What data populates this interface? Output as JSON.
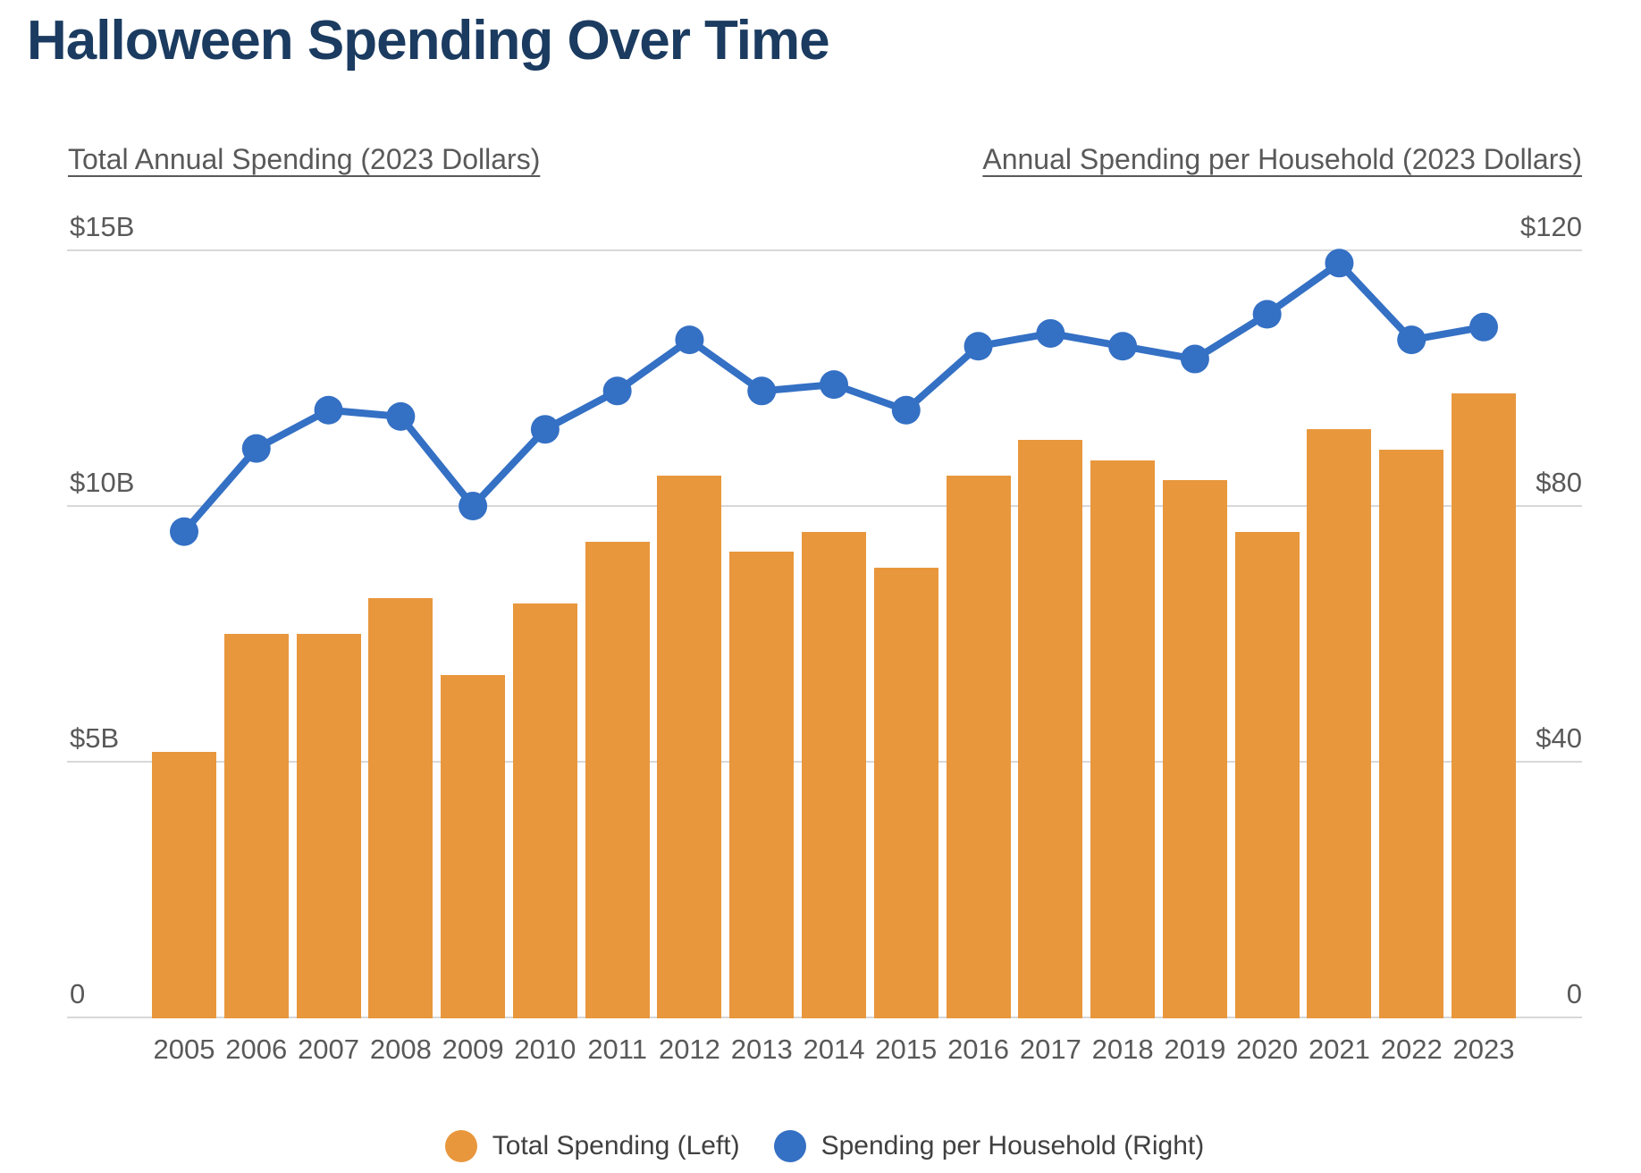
{
  "title": "Halloween Spending Over Time",
  "left_axis": {
    "header": "Total Annual Spending (2023 Dollars)",
    "ticks": [
      {
        "value": 15,
        "label": "$15B"
      },
      {
        "value": 10,
        "label": "$10B"
      },
      {
        "value": 5,
        "label": "$5B"
      },
      {
        "value": 0,
        "label": "0"
      }
    ]
  },
  "right_axis": {
    "header": "Annual Spending per Household (2023 Dollars)",
    "ticks": [
      {
        "value": 120,
        "label": "$120"
      },
      {
        "value": 80,
        "label": "$80"
      },
      {
        "value": 40,
        "label": "$40"
      },
      {
        "value": 0,
        "label": "0"
      }
    ]
  },
  "legend": [
    {
      "label": "Total Spending (Left)",
      "color": "#e8973d",
      "marker": "circle"
    },
    {
      "label": "Spending per Household (Right)",
      "color": "#3470c4",
      "marker": "circle"
    }
  ],
  "colors": {
    "bar": "#e8973d",
    "line": "#3470c4",
    "title": "#1b3b60",
    "axis_text": "#595959",
    "gridline": "#d8d8d8"
  },
  "chart_data": {
    "type": "combo",
    "categories": [
      2005,
      2006,
      2007,
      2008,
      2009,
      2010,
      2011,
      2012,
      2013,
      2014,
      2015,
      2016,
      2017,
      2018,
      2019,
      2020,
      2021,
      2022,
      2023
    ],
    "series": [
      {
        "name": "Total Spending (Left)",
        "type": "bar",
        "axis": "left",
        "unit": "billions of 2023 dollars",
        "values": [
          5.2,
          7.5,
          7.5,
          8.2,
          6.7,
          8.1,
          9.3,
          10.6,
          9.1,
          9.5,
          8.8,
          10.6,
          11.3,
          10.9,
          10.5,
          9.5,
          11.5,
          11.1,
          12.2
        ]
      },
      {
        "name": "Spending per Household (Right)",
        "type": "line",
        "axis": "right",
        "unit": "2023 dollars",
        "values": [
          76,
          89,
          95,
          94,
          80,
          92,
          98,
          106,
          98,
          99,
          95,
          105,
          107,
          105,
          103,
          110,
          118,
          106,
          108
        ]
      }
    ],
    "left_ylabel": "Total Annual Spending (2023 Dollars)",
    "right_ylabel": "Annual Spending per Household (2023 Dollars)",
    "left_ylim": [
      0,
      15
    ],
    "right_ylim": [
      0,
      120
    ],
    "grid": true,
    "legend_position": "bottom"
  }
}
